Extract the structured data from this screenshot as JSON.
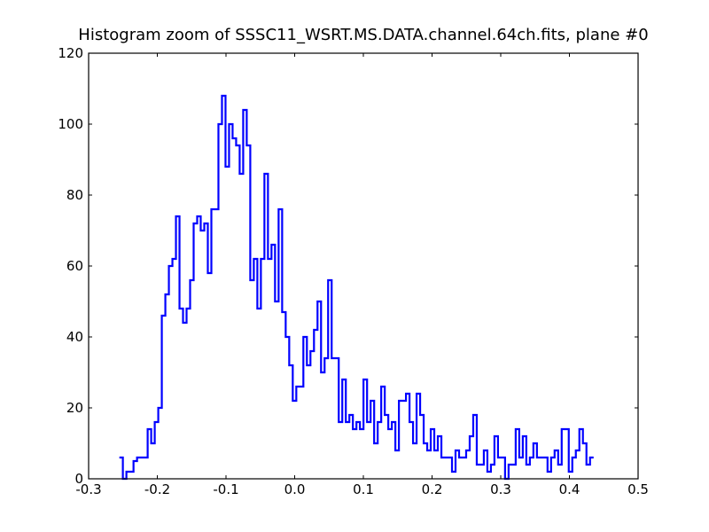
{
  "chart_data": {
    "type": "line",
    "drawstyle": "steps",
    "title": "Histogram zoom of SSSC11_WSRT.MS.DATA.channel.64ch.fits, plane #0",
    "xlabel": "",
    "ylabel": "",
    "xlim": [
      -0.3,
      0.5
    ],
    "ylim": [
      0,
      120
    ],
    "xticks": [
      -0.3,
      -0.2,
      -0.1,
      0.0,
      0.1,
      0.2,
      0.3,
      0.4,
      0.5
    ],
    "xtick_labels": [
      "-0.3",
      "-0.2",
      "-0.1",
      "0.0",
      "0.1",
      "0.2",
      "0.3",
      "0.4",
      "0.5"
    ],
    "yticks": [
      0,
      20,
      40,
      60,
      80,
      100,
      120
    ],
    "ytick_labels": [
      "0",
      "20",
      "40",
      "60",
      "80",
      "100",
      "120"
    ],
    "grid": false,
    "legend": "none",
    "colors": {
      "series": "#0000ff",
      "axes": "#000000",
      "background": "#ffffff"
    },
    "series": [
      {
        "color": "#0000ff",
        "x": [
          -0.2527,
          -0.2476,
          -0.2424,
          -0.2372,
          -0.2321,
          -0.2269,
          -0.2218,
          -0.2166,
          -0.2115,
          -0.2063,
          -0.2012,
          -0.196,
          -0.1909,
          -0.1857,
          -0.1806,
          -0.1754,
          -0.1703,
          -0.1651,
          -0.16,
          -0.1548,
          -0.1497,
          -0.1445,
          -0.1394,
          -0.1342,
          -0.129,
          -0.1239,
          -0.1187,
          -0.1136,
          -0.1084,
          -0.1033,
          -0.0981,
          -0.093,
          -0.0878,
          -0.0827,
          -0.0775,
          -0.0724,
          -0.0672,
          -0.0621,
          -0.0569,
          -0.0518,
          -0.0466,
          -0.0415,
          -0.0363,
          -0.0312,
          -0.026,
          -0.0208,
          -0.0157,
          -0.0105,
          -0.0054,
          -0.0002,
          0.0049,
          0.0101,
          0.0152,
          0.0204,
          0.0255,
          0.0307,
          0.0358,
          0.041,
          0.0461,
          0.0513,
          0.0564,
          0.0616,
          0.0667,
          0.0719,
          0.077,
          0.0822,
          0.0873,
          0.0925,
          0.0976,
          0.1028,
          0.108,
          0.1131,
          0.1183,
          0.1234,
          0.1286,
          0.1337,
          0.1389,
          0.144,
          0.1492,
          0.1543,
          0.1595,
          0.1646,
          0.1698,
          0.1749,
          0.1801,
          0.1852,
          0.1904,
          0.1955,
          0.2007,
          0.2058,
          0.211,
          0.2162,
          0.2213,
          0.2265,
          0.2316,
          0.2368,
          0.2419,
          0.2471,
          0.2522,
          0.2574,
          0.2625,
          0.2677,
          0.2728,
          0.278,
          0.2831,
          0.2883,
          0.2934,
          0.2986,
          0.3037,
          0.3089,
          0.314,
          0.3192,
          0.3244,
          0.3295,
          0.3347,
          0.3398,
          0.345,
          0.3501,
          0.3553,
          0.3604,
          0.3656,
          0.3707,
          0.3759,
          0.381,
          0.3862,
          0.3913,
          0.3965,
          0.4016,
          0.4068,
          0.4119,
          0.4171,
          0.4222,
          0.4274,
          0.4326
        ],
        "y": [
          6,
          0,
          2,
          2,
          5,
          6,
          6,
          6,
          14,
          10,
          16,
          20,
          46,
          52,
          60,
          62,
          74,
          48,
          44,
          48,
          56,
          72,
          74,
          70,
          72,
          58,
          76,
          76,
          100,
          108,
          88,
          100,
          96,
          94,
          86,
          104,
          94,
          56,
          62,
          48,
          62,
          86,
          62,
          66,
          50,
          76,
          47,
          40,
          32,
          22,
          26,
          26,
          40,
          32,
          36,
          42,
          50,
          30,
          34,
          56,
          34,
          34,
          16,
          28,
          16,
          18,
          14,
          16,
          14,
          28,
          16,
          22,
          10,
          16,
          26,
          18,
          14,
          16,
          8,
          22,
          22,
          24,
          16,
          10,
          24,
          18,
          10,
          8,
          14,
          8,
          12,
          6,
          6,
          6,
          2,
          8,
          6,
          6,
          8,
          12,
          18,
          4,
          4,
          8,
          2,
          4,
          12,
          6,
          6,
          0,
          4,
          4,
          14,
          6,
          12,
          4,
          6,
          10,
          6,
          6,
          6,
          2,
          6,
          8,
          4,
          14,
          14,
          2,
          6,
          8,
          14,
          10,
          4,
          6
        ]
      }
    ]
  }
}
